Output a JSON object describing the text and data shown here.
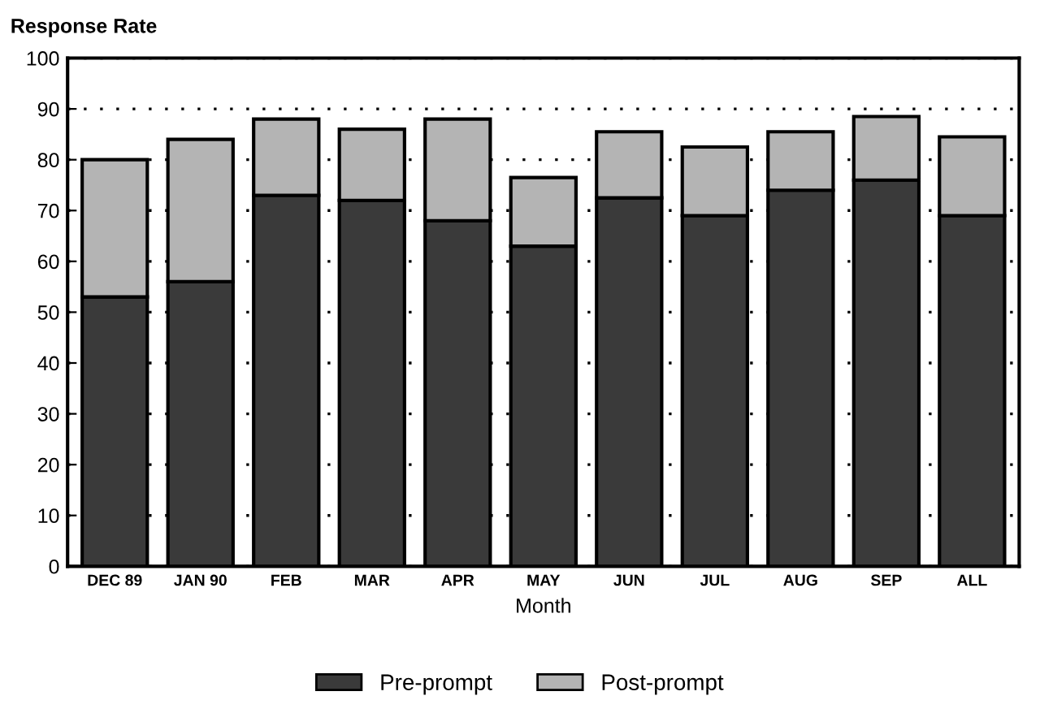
{
  "chart_data": {
    "type": "bar",
    "stacked": true,
    "ylabel": "Response Rate",
    "xlabel": "Month",
    "categories": [
      "DEC 89",
      "JAN 90",
      "FEB",
      "MAR",
      "APR",
      "MAY",
      "JUN",
      "JUL",
      "AUG",
      "SEP",
      "ALL"
    ],
    "series": [
      {
        "name": "Pre-prompt",
        "color": "#3a3a3a",
        "values": [
          53,
          56,
          73,
          72,
          68,
          63,
          72.5,
          69,
          74,
          76,
          69
        ]
      },
      {
        "name": "Post-prompt",
        "color": "#b4b4b4",
        "values": [
          27,
          28,
          15,
          14,
          20,
          13.5,
          13,
          13.5,
          11.5,
          12.5,
          15.5
        ]
      }
    ],
    "ylim": [
      0,
      100
    ],
    "yticks": [
      0,
      10,
      20,
      30,
      40,
      50,
      60,
      70,
      80,
      90,
      100
    ],
    "grid": "y",
    "legend": "bottom"
  }
}
